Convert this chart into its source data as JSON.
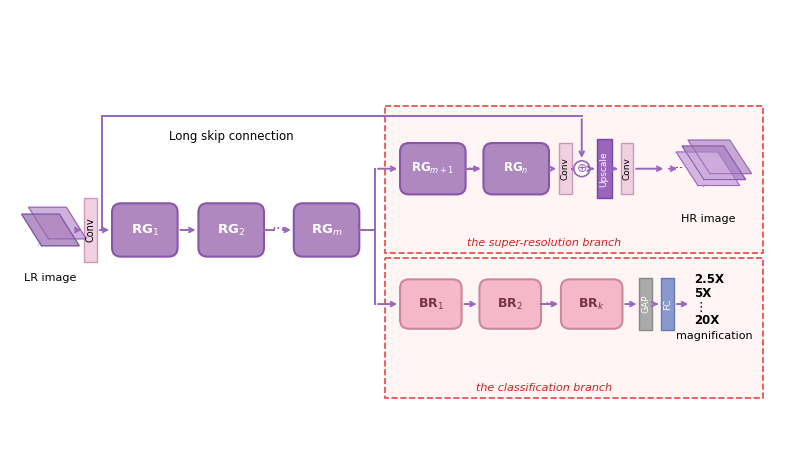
{
  "bg_color": "#ffffff",
  "rg_box_color": "#b088c0",
  "br_box_color": "#f4b8c8",
  "conv_bar_color": "#f0d0e0",
  "upscale_bar_color": "#9966bb",
  "gap_bar_color": "#aaaaaa",
  "fc_bar_color": "#8899cc",
  "sr_branch_border": "#ee4444",
  "cls_branch_border": "#ee4444",
  "arrow_color": "#9966bb",
  "text_branch_sr": "the super-resolution branch",
  "text_branch_cls": "the classification branch",
  "text_lr": "LR image",
  "text_hr": "HR image",
  "text_long_skip": "Long skip connection",
  "text_magnification": "magnification"
}
